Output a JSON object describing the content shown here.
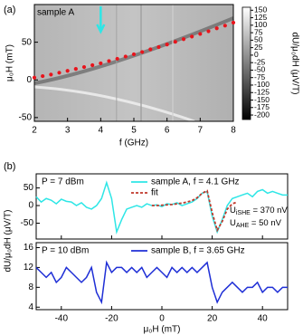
{
  "chart_data": [
    {
      "type": "heatmap",
      "panel_label": "(a)",
      "annotation": "sample A",
      "xlabel": "f (GHz)",
      "ylabel": "μ₀H (mT)",
      "xlim": [
        2,
        8
      ],
      "xticks": [
        2,
        3,
        4,
        5,
        6,
        7,
        8
      ],
      "ylim": [
        -55,
        100
      ],
      "yticks": [
        -50,
        0,
        50
      ],
      "arrow_x": 4,
      "x": [
        2,
        2.25,
        2.5,
        2.75,
        3,
        3.25,
        3.5,
        3.75,
        4,
        4.25,
        4.5,
        4.75,
        5,
        5.25,
        5.5,
        5.75,
        6,
        6.25,
        6.5,
        6.75,
        7,
        7.25,
        7.5,
        7.75,
        8
      ],
      "values": [
        3,
        5,
        7,
        9.5,
        12,
        14.5,
        17,
        19.5,
        22,
        25,
        28,
        31,
        34,
        37,
        40.5,
        43.5,
        47,
        50.5,
        54,
        57.5,
        61,
        64.5,
        68.5,
        72,
        76
      ],
      "color": "#e8141c",
      "colorbar": {
        "label": "dU/μ₀dH (μV/T)",
        "lim": [
          -215,
          160
        ],
        "ticks": [
          150,
          125,
          100,
          75,
          50,
          25,
          0,
          -25,
          -50,
          -75,
          -100,
          -125,
          -150,
          -175,
          -200
        ]
      }
    },
    {
      "type": "line",
      "panel_label": "(b)",
      "annotation": "P = 7 dBm",
      "formulas": [
        {
          "symbol": "U",
          "subscript": "iSHE",
          "text": " = 370 nV"
        },
        {
          "symbol": "U",
          "subscript": "AHE",
          "text": " = 50 nV"
        }
      ],
      "xlim": [
        -50,
        50
      ],
      "xticks": [
        -40,
        -20,
        0,
        20,
        40
      ],
      "ylim": [
        -95,
        90
      ],
      "yticks": [
        -50,
        0,
        50
      ],
      "series": [
        {
          "name": "sample A, f = 4.1 GHz",
          "color": "#2ee6e6",
          "x": [
            -50,
            -48,
            -46,
            -44,
            -42,
            -40,
            -38,
            -36,
            -34,
            -32,
            -30,
            -28,
            -26,
            -24,
            -22,
            -20,
            -18,
            -16,
            -14,
            -12,
            -10,
            -8,
            -6,
            -4,
            -2,
            0,
            2,
            4,
            6,
            8,
            10,
            12,
            14,
            16,
            18,
            20,
            22,
            24,
            26,
            28,
            30,
            32,
            34,
            36,
            38,
            40,
            42,
            44,
            46,
            48,
            50
          ],
          "values": [
            25,
            10,
            20,
            15,
            5,
            18,
            12,
            10,
            0,
            8,
            -5,
            -10,
            0,
            20,
            65,
            20,
            -75,
            -40,
            -10,
            -5,
            0,
            -5,
            5,
            0,
            2,
            -3,
            5,
            3,
            8,
            0,
            5,
            10,
            20,
            35,
            40,
            -30,
            -75,
            -40,
            0,
            20,
            25,
            30,
            35,
            25,
            40,
            45,
            35,
            40,
            35,
            30,
            30
          ]
        },
        {
          "name": "fit",
          "color": "#c0392b",
          "dash": true,
          "x": [
            -4,
            -2,
            0,
            2,
            4,
            6,
            8,
            10,
            12,
            14,
            16,
            18,
            20,
            22,
            24,
            26,
            28,
            30
          ],
          "values": [
            0,
            0,
            1,
            2,
            3,
            5,
            7,
            10,
            14,
            22,
            35,
            42,
            -20,
            -70,
            -45,
            -10,
            5,
            10
          ]
        }
      ]
    },
    {
      "type": "line",
      "annotation": "P = 10 dBm",
      "xlabel": "μ₀H (mT)",
      "ylabel": "dU/μ₀dH (μV/T)",
      "xlim": [
        -50,
        50
      ],
      "xticks": [
        -40,
        -20,
        0,
        20,
        40
      ],
      "ylim": [
        3.5,
        17
      ],
      "yticks": [
        4,
        8,
        12,
        16
      ],
      "series": [
        {
          "name": "sample B, f = 3.65 GHz",
          "color": "#1f2fd6",
          "x": [
            -50,
            -48,
            -46,
            -44,
            -42,
            -40,
            -38,
            -36,
            -34,
            -32,
            -30,
            -28,
            -26,
            -24,
            -22,
            -20,
            -18,
            -16,
            -14,
            -12,
            -10,
            -8,
            -6,
            -4,
            -2,
            0,
            2,
            4,
            6,
            8,
            10,
            12,
            14,
            16,
            18,
            20,
            22,
            24,
            26,
            28,
            30,
            32,
            34,
            36,
            38,
            40,
            42,
            44,
            46,
            48,
            50
          ],
          "values": [
            12,
            11,
            10,
            11,
            9,
            10,
            12,
            11,
            10,
            9,
            10,
            12,
            7,
            5,
            13,
            11,
            12,
            12,
            11,
            12,
            11,
            12,
            10,
            11,
            12,
            11,
            10,
            12,
            11,
            12,
            11,
            12,
            11,
            12,
            13,
            8,
            5,
            7,
            8,
            9,
            8,
            7,
            8,
            8,
            9,
            7,
            8,
            8,
            7,
            8,
            8
          ]
        }
      ]
    }
  ]
}
